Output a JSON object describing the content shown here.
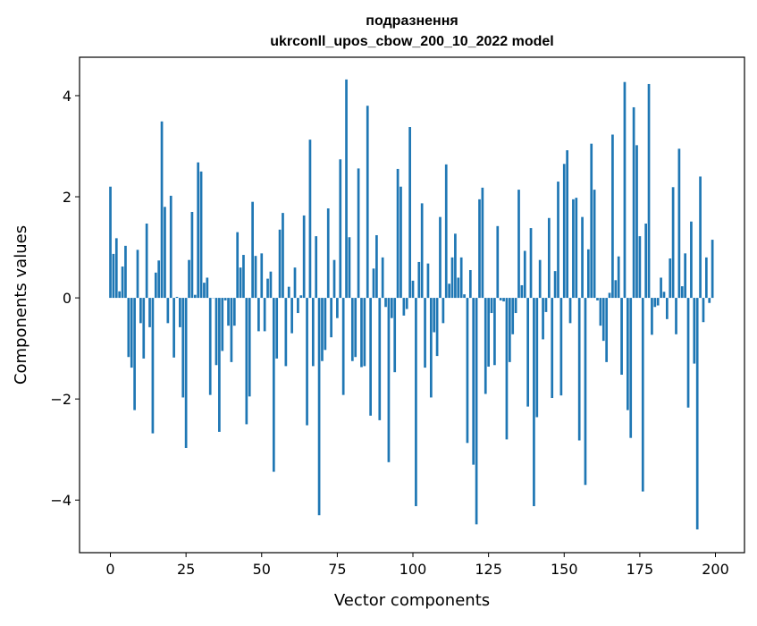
{
  "chart_data": {
    "type": "bar",
    "title": [
      "подразнення",
      "ukrconll_upos_cbow_200_10_2022 model"
    ],
    "xlabel": "Vector components",
    "ylabel": "Components values",
    "xlim": [
      -10.2,
      209.6
    ],
    "ylim": [
      -5.04,
      4.76
    ],
    "xticks": [
      0,
      25,
      50,
      75,
      100,
      125,
      150,
      175,
      200
    ],
    "yticks": [
      -4,
      -2,
      0,
      2,
      4
    ],
    "xtick_labels": [
      "0",
      "25",
      "50",
      "75",
      "100",
      "125",
      "150",
      "175",
      "200"
    ],
    "ytick_labels": [
      "−4",
      "−2",
      "0",
      "2",
      "4"
    ],
    "grid": false,
    "bar_color": "#1f77b4",
    "values": [
      2.2,
      0.87,
      1.18,
      0.13,
      0.62,
      1.03,
      -1.17,
      -1.38,
      -2.22,
      0.95,
      -0.5,
      -1.2,
      1.47,
      -0.58,
      -2.68,
      0.5,
      0.74,
      3.49,
      1.8,
      -0.5,
      2.02,
      -1.18,
      0.02,
      -0.58,
      -1.97,
      -2.97,
      0.75,
      1.7,
      0.06,
      2.68,
      2.5,
      0.3,
      0.4,
      -1.92,
      0.0,
      -1.33,
      -2.65,
      -1.05,
      -0.05,
      -0.55,
      -1.27,
      -0.55,
      1.3,
      0.6,
      0.85,
      -2.5,
      -1.95,
      1.9,
      0.83,
      -0.66,
      0.88,
      -0.66,
      0.38,
      0.52,
      -3.44,
      -1.2,
      1.35,
      1.68,
      -1.35,
      0.22,
      -0.7,
      0.6,
      -0.3,
      0.05,
      1.63,
      -2.52,
      3.13,
      -1.35,
      1.22,
      -4.3,
      -1.25,
      -1.03,
      1.77,
      -0.78,
      0.75,
      -0.4,
      2.74,
      -1.92,
      4.32,
      1.2,
      -1.25,
      -1.17,
      2.56,
      -1.37,
      -1.35,
      3.8,
      -2.33,
      0.58,
      1.24,
      -2.42,
      0.8,
      -0.18,
      -3.25,
      -0.4,
      -1.47,
      2.55,
      2.2,
      -0.35,
      -0.22,
      3.38,
      0.34,
      -4.12,
      0.71,
      1.87,
      -1.38,
      0.68,
      -1.97,
      -0.68,
      -1.15,
      1.6,
      -0.5,
      2.64,
      0.28,
      0.8,
      1.27,
      0.4,
      0.8,
      0.07,
      -2.87,
      0.55,
      -3.3,
      -4.48,
      1.95,
      2.18,
      -1.9,
      -1.36,
      -0.3,
      -1.33,
      1.42,
      -0.05,
      -0.07,
      -2.8,
      -1.27,
      -0.72,
      -0.3,
      2.14,
      0.25,
      0.93,
      -2.15,
      1.38,
      -4.12,
      -2.36,
      0.75,
      -0.82,
      -0.28,
      1.58,
      -1.98,
      0.53,
      2.3,
      -1.93,
      2.65,
      2.92,
      -0.5,
      1.95,
      1.98,
      -2.82,
      1.6,
      -3.7,
      0.96,
      3.05,
      2.14,
      -0.05,
      -0.55,
      -0.85,
      -1.27,
      0.1,
      3.23,
      0.35,
      0.82,
      -1.52,
      4.27,
      -2.22,
      -2.77,
      3.77,
      3.02,
      1.22,
      -3.83,
      1.47,
      4.23,
      -0.73,
      -0.18,
      -0.15,
      0.4,
      0.12,
      -0.42,
      0.78,
      2.19,
      -0.72,
      2.95,
      0.23,
      0.88,
      -2.17,
      1.51,
      -1.3,
      -4.58,
      2.4,
      -0.48,
      0.8,
      -0.1,
      1.15
    ]
  }
}
